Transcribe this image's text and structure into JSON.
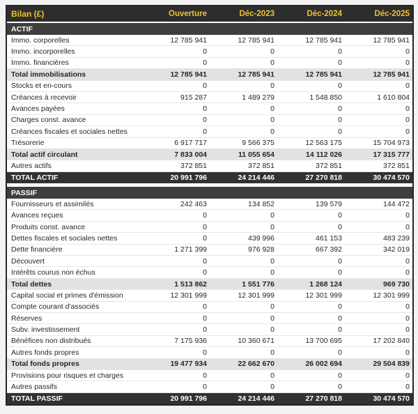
{
  "table": {
    "title": "Bilan (£)",
    "columns": [
      "Ouverture",
      "Déc-2023",
      "Déc-2024",
      "Déc-2025"
    ],
    "colors": {
      "header_bg": "#2d2d2d",
      "header_text": "#f0c230",
      "section_bg": "#3e3e3e",
      "section_text": "#ffffff",
      "subtotal_bg": "#e2e2e2",
      "grand_total_bg": "#323232",
      "grand_total_text": "#ffffff",
      "row_text": "#262626",
      "row_border": "#e6e6e6",
      "page_bg": "#f3f3f3",
      "table_border": "#262626"
    },
    "sections": [
      {
        "name": "ACTIF",
        "rows": [
          {
            "label": "Immo. corporelles",
            "type": "normal",
            "values": [
              "12 785 941",
              "12 785 941",
              "12 785 941",
              "12 785 941"
            ]
          },
          {
            "label": "Immo. incorporelles",
            "type": "normal",
            "values": [
              "0",
              "0",
              "0",
              "0"
            ]
          },
          {
            "label": "Immo. financières",
            "type": "normal",
            "values": [
              "0",
              "0",
              "0",
              "0"
            ]
          },
          {
            "label": "Total immobilisations",
            "type": "subtotal",
            "values": [
              "12 785 941",
              "12 785 941",
              "12 785 941",
              "12 785 941"
            ]
          },
          {
            "label": "Stocks et en-cours",
            "type": "normal",
            "values": [
              "0",
              "0",
              "0",
              "0"
            ]
          },
          {
            "label": "Créances à recevoir",
            "type": "normal",
            "values": [
              "915 287",
              "1 489 279",
              "1 548 850",
              "1 610 804"
            ]
          },
          {
            "label": "Avances payées",
            "type": "normal",
            "values": [
              "0",
              "0",
              "0",
              "0"
            ]
          },
          {
            "label": "Charges const. avance",
            "type": "normal",
            "values": [
              "0",
              "0",
              "0",
              "0"
            ]
          },
          {
            "label": "Créances fiscales et sociales nettes",
            "type": "normal",
            "values": [
              "0",
              "0",
              "0",
              "0"
            ]
          },
          {
            "label": "Trésorerie",
            "type": "normal",
            "values": [
              "6 917 717",
              "9 566 375",
              "12 563 175",
              "15 704 973"
            ]
          },
          {
            "label": "Total actif circulant",
            "type": "subtotal",
            "values": [
              "7 833 004",
              "11 055 654",
              "14 112 026",
              "17 315 777"
            ]
          },
          {
            "label": "Autres actifs",
            "type": "normal",
            "values": [
              "372 851",
              "372 851",
              "372 851",
              "372 851"
            ]
          },
          {
            "label": "TOTAL ACTIF",
            "type": "grand",
            "values": [
              "20 991 796",
              "24 214 446",
              "27 270 818",
              "30 474 570"
            ]
          }
        ]
      },
      {
        "name": "PASSIF",
        "rows": [
          {
            "label": "Fournisseurs et assimilés",
            "type": "normal",
            "values": [
              "242 463",
              "134 852",
              "139 579",
              "144 472"
            ]
          },
          {
            "label": "Avances reçues",
            "type": "normal",
            "values": [
              "0",
              "0",
              "0",
              "0"
            ]
          },
          {
            "label": "Produits const. avance",
            "type": "normal",
            "values": [
              "0",
              "0",
              "0",
              "0"
            ]
          },
          {
            "label": "Dettes fiscales et sociales nettes",
            "type": "normal",
            "values": [
              "0",
              "439 996",
              "461 153",
              "483 239"
            ]
          },
          {
            "label": "Dette financière",
            "type": "normal",
            "values": [
              "1 271 399",
              "976 928",
              "667 392",
              "342 019"
            ]
          },
          {
            "label": "Découvert",
            "type": "normal",
            "values": [
              "0",
              "0",
              "0",
              "0"
            ]
          },
          {
            "label": "Intérêts courus non échus",
            "type": "normal",
            "values": [
              "0",
              "0",
              "0",
              "0"
            ]
          },
          {
            "label": "Total dettes",
            "type": "subtotal",
            "values": [
              "1 513 862",
              "1 551 776",
              "1 268 124",
              "969 730"
            ]
          },
          {
            "label": "Capital social et primes d'émission",
            "type": "normal",
            "values": [
              "12 301 999",
              "12 301 999",
              "12 301 999",
              "12 301 999"
            ]
          },
          {
            "label": "Compte courant d'associés",
            "type": "normal",
            "values": [
              "0",
              "0",
              "0",
              "0"
            ]
          },
          {
            "label": "Réserves",
            "type": "normal",
            "values": [
              "0",
              "0",
              "0",
              "0"
            ]
          },
          {
            "label": "Subv. investissement",
            "type": "normal",
            "values": [
              "0",
              "0",
              "0",
              "0"
            ]
          },
          {
            "label": "Bénéfices non distribués",
            "type": "normal",
            "values": [
              "7 175 936",
              "10 360 671",
              "13 700 695",
              "17 202 840"
            ]
          },
          {
            "label": "Autres fonds propres",
            "type": "normal",
            "values": [
              "0",
              "0",
              "0",
              "0"
            ]
          },
          {
            "label": "Total fonds propres",
            "type": "subtotal",
            "values": [
              "19 477 934",
              "22 662 670",
              "26 002 694",
              "29 504 839"
            ]
          },
          {
            "label": "Provisions pour risques et charges",
            "type": "normal",
            "values": [
              "0",
              "0",
              "0",
              "0"
            ]
          },
          {
            "label": "Autres passifs",
            "type": "normal",
            "values": [
              "0",
              "0",
              "0",
              "0"
            ]
          },
          {
            "label": "TOTAL PASSIF",
            "type": "grand",
            "values": [
              "20 991 796",
              "24 214 446",
              "27 270 818",
              "30 474 570"
            ]
          }
        ]
      }
    ]
  }
}
